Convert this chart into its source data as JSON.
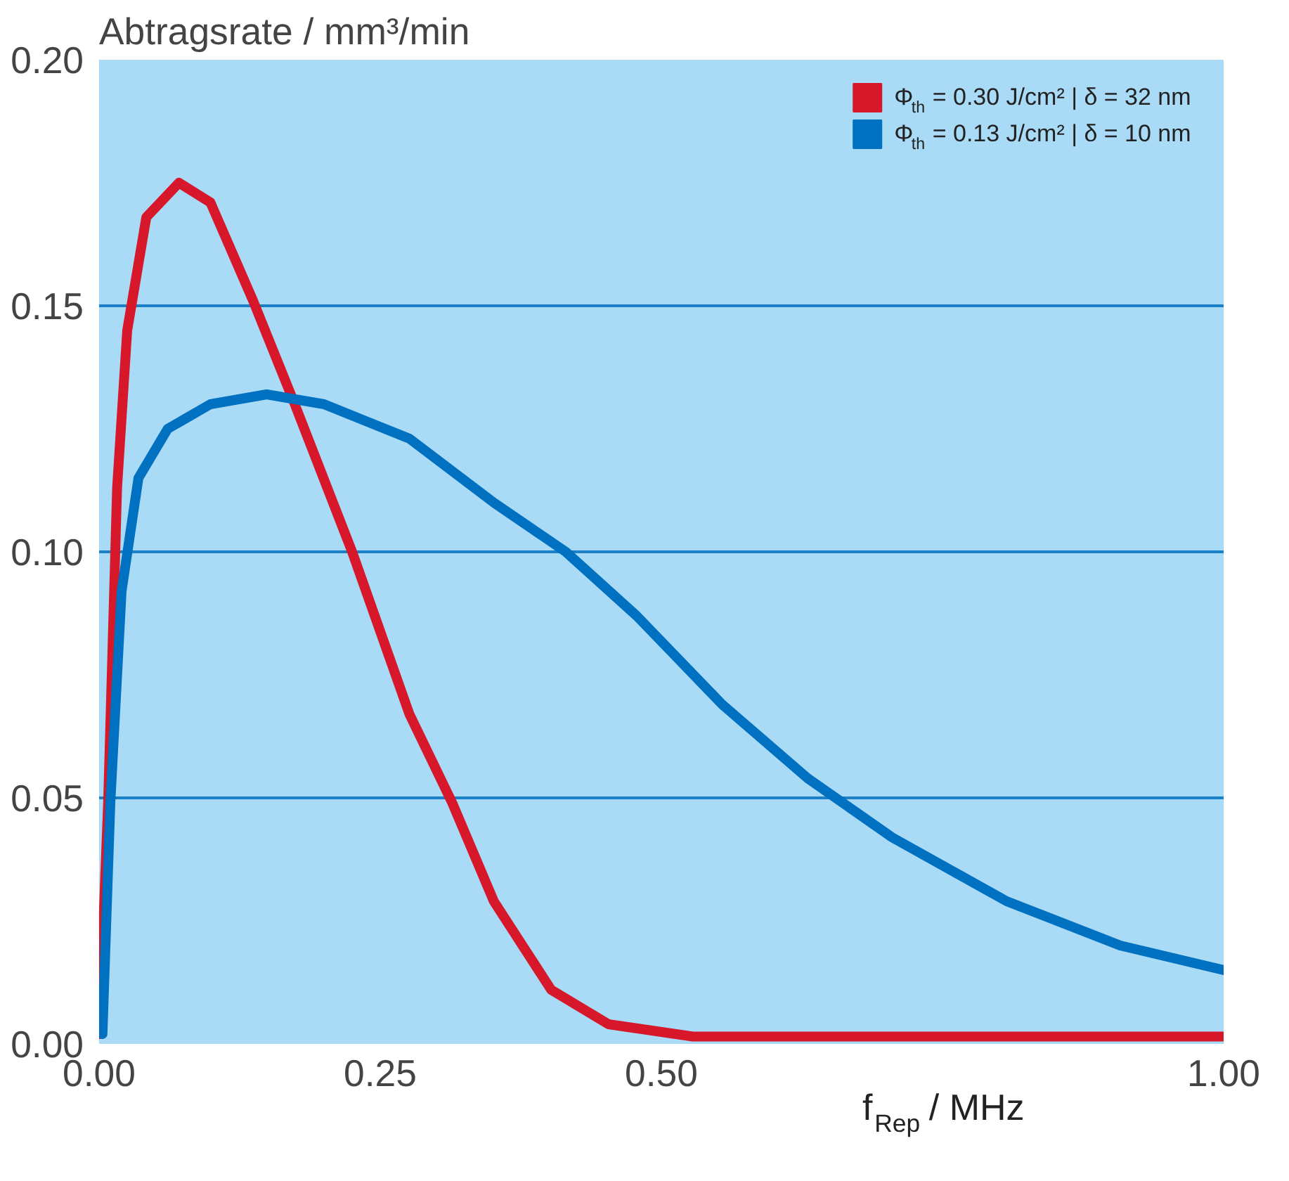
{
  "chart_data": {
    "type": "line",
    "ylabel": "Abtragsrate / mm³/min",
    "xlabel": "f$_{Rep}$ / MHz",
    "xlim": [
      0,
      1.0
    ],
    "xticks": [
      {
        "value": 0,
        "label": "0.00"
      },
      {
        "value": 0.25,
        "label": "0.25"
      },
      {
        "value": 0.5,
        "label": "0.50"
      },
      {
        "value": 1.0,
        "label": "1.00"
      }
    ],
    "ylim": [
      0,
      0.2
    ],
    "yticks": [
      {
        "value": 0,
        "label": "0.00"
      },
      {
        "value": 0.05,
        "label": "0.05"
      },
      {
        "value": 0.1,
        "label": "0.10"
      },
      {
        "value": 0.15,
        "label": "0.15"
      },
      {
        "value": 0.2,
        "label": "0.20"
      }
    ],
    "grid": "y",
    "legend": "top right",
    "marker": "none",
    "line_style": "solid",
    "series": [
      {
        "name": "Φ$_{th}$ = 0.30 J/cm² | δ = 32 nm",
        "color": "#d7182a",
        "x": [
          0,
          0.008,
          0.016,
          0.025,
          0.042,
          0.071,
          0.099,
          0.137,
          0.174,
          0.225,
          0.276,
          0.314,
          0.351,
          0.402,
          0.453,
          0.528,
          1.0
        ],
        "values": [
          0.002,
          0.049,
          0.113,
          0.145,
          0.168,
          0.175,
          0.171,
          0.151,
          0.13,
          0.1,
          0.067,
          0.049,
          0.029,
          0.011,
          0.004,
          0.0015,
          0.0015
        ]
      },
      {
        "name": "Φ$_{th}$ = 0.13 J/cm² | δ = 10 nm",
        "color": "#0070c0",
        "x": [
          0.003,
          0.01,
          0.02,
          0.035,
          0.061,
          0.099,
          0.149,
          0.2,
          0.276,
          0.351,
          0.415,
          0.478,
          0.554,
          0.63,
          0.705,
          0.807,
          0.908,
          1.0
        ],
        "values": [
          0.002,
          0.049,
          0.092,
          0.115,
          0.125,
          0.13,
          0.132,
          0.13,
          0.123,
          0.11,
          0.1,
          0.087,
          0.069,
          0.054,
          0.042,
          0.029,
          0.02,
          0.015
        ]
      }
    ]
  }
}
